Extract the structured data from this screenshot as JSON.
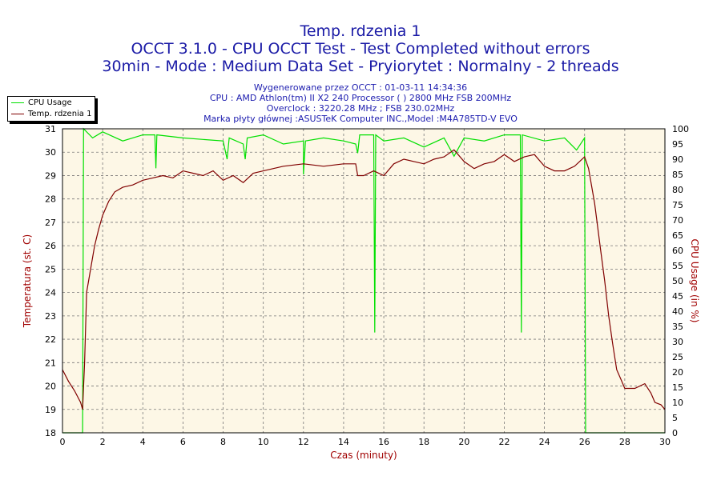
{
  "header": {
    "title_lines": [
      "Temp. rdzenia 1",
      "OCCT 3.1.0 - CPU OCCT Test - Test Completed without errors",
      "30min - Mode : Medium Data Set - Pryiorytet : Normalny - 2 threads"
    ],
    "info_lines": [
      "Wygenerowane przez OCCT : 01-03-11 14:34:36",
      "CPU : AMD Athlon(tm) II X2 240 Processor (  ) 2800 MHz FSB 200MHz",
      "Overclock : 3220.28 MHz ; FSB 230.02MHz",
      "Marka płyty głównej :ASUSTeK Computer INC.,Model :M4A785TD-V EVO"
    ]
  },
  "colors": {
    "cpu_usage": "#00e000",
    "temperature": "#800000",
    "plot_background": "#fdf7e6",
    "axis_label": "#a00000",
    "title": "#1a1aa6"
  },
  "chart_data": {
    "type": "line",
    "xlabel": "Czas (minuty)",
    "ylabel_left": "Temperatura (st. C)",
    "ylabel_right": "CPU Usage (in %)",
    "xlim": [
      0,
      30
    ],
    "ylim_left": [
      18,
      31
    ],
    "ylim_right": [
      0,
      100
    ],
    "x_ticks": [
      "0",
      "2",
      "4",
      "6",
      "8",
      "10",
      "12",
      "14",
      "16",
      "18",
      "20",
      "22",
      "24",
      "26",
      "28",
      "30"
    ],
    "y_left_ticks": [
      "18",
      "19",
      "20",
      "21",
      "22",
      "23",
      "24",
      "25",
      "26",
      "27",
      "28",
      "29",
      "30",
      "31"
    ],
    "y_right_ticks": [
      "0",
      "5",
      "10",
      "15",
      "20",
      "25",
      "30",
      "35",
      "40",
      "45",
      "50",
      "55",
      "60",
      "65",
      "70",
      "75",
      "80",
      "85",
      "90",
      "95",
      "100"
    ],
    "grid": true,
    "legend": {
      "position": "top-left",
      "entries": [
        "CPU Usage",
        "Temp. rdzenia 1"
      ]
    },
    "series": [
      {
        "name": "CPU Usage",
        "axis": "right",
        "points": [
          [
            0,
            0
          ],
          [
            1.0,
            0
          ],
          [
            1.05,
            100
          ],
          [
            1.5,
            97
          ],
          [
            2,
            99
          ],
          [
            3,
            96
          ],
          [
            4,
            98
          ],
          [
            4.6,
            98
          ],
          [
            4.65,
            87
          ],
          [
            4.7,
            98
          ],
          [
            6,
            97
          ],
          [
            8,
            96
          ],
          [
            8.2,
            90
          ],
          [
            8.3,
            97
          ],
          [
            9,
            95
          ],
          [
            9.1,
            90
          ],
          [
            9.2,
            97
          ],
          [
            10,
            98
          ],
          [
            11,
            95
          ],
          [
            12,
            96
          ],
          [
            12,
            85
          ],
          [
            12.1,
            96
          ],
          [
            13,
            97
          ],
          [
            14,
            96
          ],
          [
            14.6,
            95
          ],
          [
            14.7,
            92
          ],
          [
            14.8,
            98
          ],
          [
            15.5,
            98
          ],
          [
            15.55,
            33
          ],
          [
            15.6,
            98
          ],
          [
            16,
            96
          ],
          [
            17,
            97
          ],
          [
            18,
            94
          ],
          [
            19,
            97
          ],
          [
            19.5,
            91
          ],
          [
            20,
            97
          ],
          [
            21,
            96
          ],
          [
            22,
            98
          ],
          [
            22.8,
            98
          ],
          [
            22.85,
            33
          ],
          [
            22.9,
            98
          ],
          [
            24,
            96
          ],
          [
            25,
            97
          ],
          [
            25.6,
            93
          ],
          [
            26,
            97
          ],
          [
            26.05,
            0
          ],
          [
            30,
            0
          ]
        ]
      },
      {
        "name": "Temp. rdzenia 1",
        "axis": "left",
        "points": [
          [
            0,
            20.7
          ],
          [
            0.3,
            20.2
          ],
          [
            0.6,
            19.8
          ],
          [
            0.9,
            19.3
          ],
          [
            1.0,
            19.0
          ],
          [
            1.1,
            21.0
          ],
          [
            1.2,
            24.0
          ],
          [
            1.4,
            25.0
          ],
          [
            1.6,
            26.0
          ],
          [
            1.8,
            26.7
          ],
          [
            2.0,
            27.3
          ],
          [
            2.3,
            27.9
          ],
          [
            2.6,
            28.3
          ],
          [
            3.0,
            28.5
          ],
          [
            3.5,
            28.6
          ],
          [
            4.0,
            28.8
          ],
          [
            4.5,
            28.9
          ],
          [
            5.0,
            29.0
          ],
          [
            5.5,
            28.9
          ],
          [
            6.0,
            29.2
          ],
          [
            6.5,
            29.1
          ],
          [
            7.0,
            29.0
          ],
          [
            7.5,
            29.2
          ],
          [
            8.0,
            28.8
          ],
          [
            8.5,
            29.0
          ],
          [
            9.0,
            28.7
          ],
          [
            9.5,
            29.1
          ],
          [
            10.0,
            29.2
          ],
          [
            11.0,
            29.4
          ],
          [
            12.0,
            29.5
          ],
          [
            13.0,
            29.4
          ],
          [
            14.0,
            29.5
          ],
          [
            14.6,
            29.5
          ],
          [
            14.7,
            29.0
          ],
          [
            15.0,
            29.0
          ],
          [
            15.5,
            29.2
          ],
          [
            16.0,
            29.0
          ],
          [
            16.5,
            29.5
          ],
          [
            17.0,
            29.7
          ],
          [
            17.5,
            29.6
          ],
          [
            18.0,
            29.5
          ],
          [
            18.5,
            29.7
          ],
          [
            19.0,
            29.8
          ],
          [
            19.5,
            30.1
          ],
          [
            20.0,
            29.6
          ],
          [
            20.5,
            29.3
          ],
          [
            21.0,
            29.5
          ],
          [
            21.5,
            29.6
          ],
          [
            22.0,
            29.9
          ],
          [
            22.5,
            29.6
          ],
          [
            23.0,
            29.8
          ],
          [
            23.5,
            29.9
          ],
          [
            24.0,
            29.4
          ],
          [
            24.5,
            29.2
          ],
          [
            25.0,
            29.2
          ],
          [
            25.5,
            29.4
          ],
          [
            26.0,
            29.8
          ],
          [
            26.2,
            29.3
          ],
          [
            26.5,
            27.8
          ],
          [
            26.8,
            25.8
          ],
          [
            27.0,
            24.5
          ],
          [
            27.2,
            23.0
          ],
          [
            27.4,
            21.8
          ],
          [
            27.6,
            20.7
          ],
          [
            27.8,
            20.3
          ],
          [
            28.0,
            19.9
          ],
          [
            28.5,
            19.9
          ],
          [
            29.0,
            20.1
          ],
          [
            29.3,
            19.7
          ],
          [
            29.5,
            19.3
          ],
          [
            29.8,
            19.2
          ],
          [
            30.0,
            19.0
          ]
        ]
      }
    ]
  }
}
